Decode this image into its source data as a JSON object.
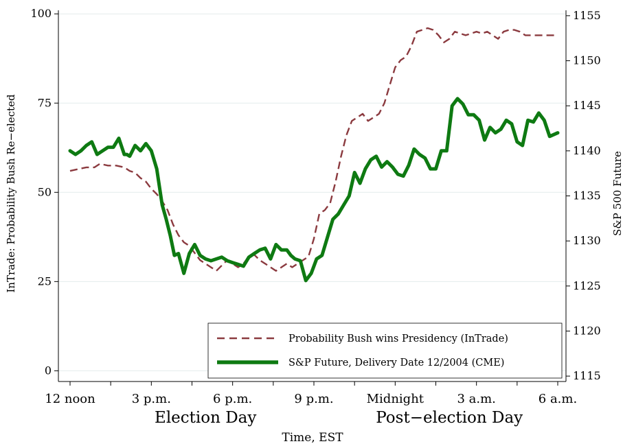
{
  "chart_data": {
    "type": "line",
    "xlabel": "Time, EST",
    "ylabel_left": "InTrade: Probability Bush Re−elected",
    "ylabel_right": "S&P 500 Future",
    "xlim": [
      0,
      18
    ],
    "x_ticks": [
      {
        "x": 0,
        "label": "12 noon"
      },
      {
        "x": 3,
        "label": "3 p.m."
      },
      {
        "x": 6,
        "label": "6 p.m."
      },
      {
        "x": 9,
        "label": "9 p.m."
      },
      {
        "x": 12,
        "label": "Midnight"
      },
      {
        "x": 15,
        "label": "3 a.m."
      },
      {
        "x": 18,
        "label": "6 a.m."
      }
    ],
    "day_labels": [
      {
        "x": 5,
        "label": "Election Day"
      },
      {
        "x": 14,
        "label": "Post−election Day"
      }
    ],
    "y_left": {
      "lim": [
        -3,
        101
      ],
      "ticks": [
        0,
        25,
        50,
        75,
        100
      ]
    },
    "y_right": {
      "lim": [
        1114.4,
        1155.6
      ],
      "ticks": [
        1115,
        1120,
        1125,
        1130,
        1135,
        1140,
        1145,
        1150,
        1155
      ]
    },
    "grid": true,
    "legend_placement": "bottom-right",
    "series": [
      {
        "name": "Probability Bush wins Presidency (InTrade)",
        "axis": "left",
        "color": "#8b3a3f",
        "style": "dashed",
        "x": [
          0,
          0.3,
          0.6,
          0.9,
          1.1,
          1.4,
          1.7,
          2.0,
          2.2,
          2.4,
          2.6,
          2.8,
          3.0,
          3.2,
          3.4,
          3.6,
          3.8,
          4.0,
          4.2,
          4.4,
          4.6,
          4.8,
          5.0,
          5.2,
          5.4,
          5.6,
          5.8,
          6.0,
          6.2,
          6.4,
          6.6,
          6.8,
          7.0,
          7.2,
          7.4,
          7.6,
          7.8,
          8.0,
          8.2,
          8.4,
          8.6,
          8.8,
          9.0,
          9.2,
          9.4,
          9.6,
          9.8,
          10.0,
          10.2,
          10.4,
          10.6,
          10.8,
          11.0,
          11.2,
          11.4,
          11.6,
          11.8,
          12.0,
          12.2,
          12.4,
          12.6,
          12.8,
          13.0,
          13.2,
          13.4,
          13.6,
          13.8,
          14.0,
          14.2,
          14.4,
          14.6,
          14.8,
          15.0,
          15.2,
          15.4,
          15.6,
          15.8,
          16.0,
          16.2,
          16.4,
          16.6,
          16.8,
          17.0,
          17.3,
          17.6,
          18.0
        ],
        "values": [
          56,
          56.5,
          57,
          57,
          58,
          57.5,
          57.5,
          57,
          56,
          55.5,
          54,
          53,
          51,
          49.5,
          47.5,
          45,
          41,
          38,
          36,
          35,
          33,
          31,
          30,
          29,
          28,
          29.5,
          31,
          30,
          29,
          30,
          32,
          32.5,
          31,
          30,
          29,
          28,
          29,
          30,
          29,
          30,
          31,
          32,
          37,
          44,
          45,
          47,
          53,
          60,
          66,
          70,
          71,
          72,
          70,
          71,
          72,
          75,
          80,
          85,
          87,
          88,
          91,
          95,
          95.5,
          96,
          95.5,
          94,
          92,
          93,
          95,
          94.5,
          94,
          94.5,
          95,
          94.5,
          95,
          94,
          93,
          95,
          95.5,
          95.5,
          95,
          94,
          94,
          94,
          94,
          94
        ]
      },
      {
        "name": "S&P Future, Delivery Date 12/2004 (CME)",
        "axis": "right",
        "color": "#0e7a12",
        "style": "solid",
        "x": [
          0,
          0.2,
          0.4,
          0.6,
          0.8,
          1.0,
          1.2,
          1.4,
          1.5,
          1.6,
          1.8,
          2.0,
          2.1,
          2.2,
          2.4,
          2.6,
          2.8,
          3.0,
          3.2,
          3.4,
          3.55,
          3.7,
          3.85,
          4.0,
          4.2,
          4.4,
          4.6,
          4.8,
          5.0,
          5.2,
          5.4,
          5.6,
          5.8,
          6.0,
          6.2,
          6.4,
          6.6,
          6.8,
          7.0,
          7.2,
          7.4,
          7.6,
          7.8,
          8.0,
          8.15,
          8.3,
          8.5,
          8.7,
          8.9,
          9.1,
          9.3,
          9.5,
          9.7,
          9.9,
          10.1,
          10.3,
          10.5,
          10.7,
          10.9,
          11.1,
          11.3,
          11.5,
          11.7,
          11.9,
          12.1,
          12.3,
          12.5,
          12.7,
          12.9,
          13.1,
          13.3,
          13.5,
          13.7,
          13.9,
          14.1,
          14.3,
          14.5,
          14.7,
          14.9,
          15.1,
          15.3,
          15.5,
          15.7,
          15.9,
          16.1,
          16.3,
          16.5,
          16.7,
          16.9,
          17.1,
          17.3,
          17.5,
          17.7,
          18.0
        ],
        "values": [
          1140.0,
          1139.6,
          1140.0,
          1140.6,
          1141.0,
          1139.6,
          1140.0,
          1140.4,
          1140.4,
          1140.4,
          1141.4,
          1139.6,
          1139.6,
          1139.4,
          1140.6,
          1140.0,
          1140.8,
          1140.0,
          1138.0,
          1134.0,
          1132.4,
          1130.6,
          1128.4,
          1128.6,
          1126.4,
          1128.6,
          1129.6,
          1128.4,
          1128.0,
          1127.8,
          1128.0,
          1128.2,
          1127.8,
          1127.6,
          1127.4,
          1127.2,
          1128.2,
          1128.6,
          1129.0,
          1129.2,
          1128.0,
          1129.6,
          1129.0,
          1129.0,
          1128.4,
          1128.0,
          1127.8,
          1125.6,
          1126.4,
          1128.0,
          1128.4,
          1130.4,
          1132.4,
          1133.0,
          1134.0,
          1135.0,
          1137.6,
          1136.4,
          1138.0,
          1139.0,
          1139.4,
          1138.2,
          1138.8,
          1138.2,
          1137.4,
          1137.2,
          1138.4,
          1140.2,
          1139.6,
          1139.2,
          1138.0,
          1138.0,
          1140.0,
          1140.0,
          1145.0,
          1145.8,
          1145.2,
          1144.0,
          1144.0,
          1143.4,
          1141.2,
          1142.6,
          1142.0,
          1142.4,
          1143.4,
          1143.0,
          1141.0,
          1140.6,
          1143.4,
          1143.2,
          1144.2,
          1143.4,
          1141.6,
          1142.0
        ]
      }
    ]
  }
}
